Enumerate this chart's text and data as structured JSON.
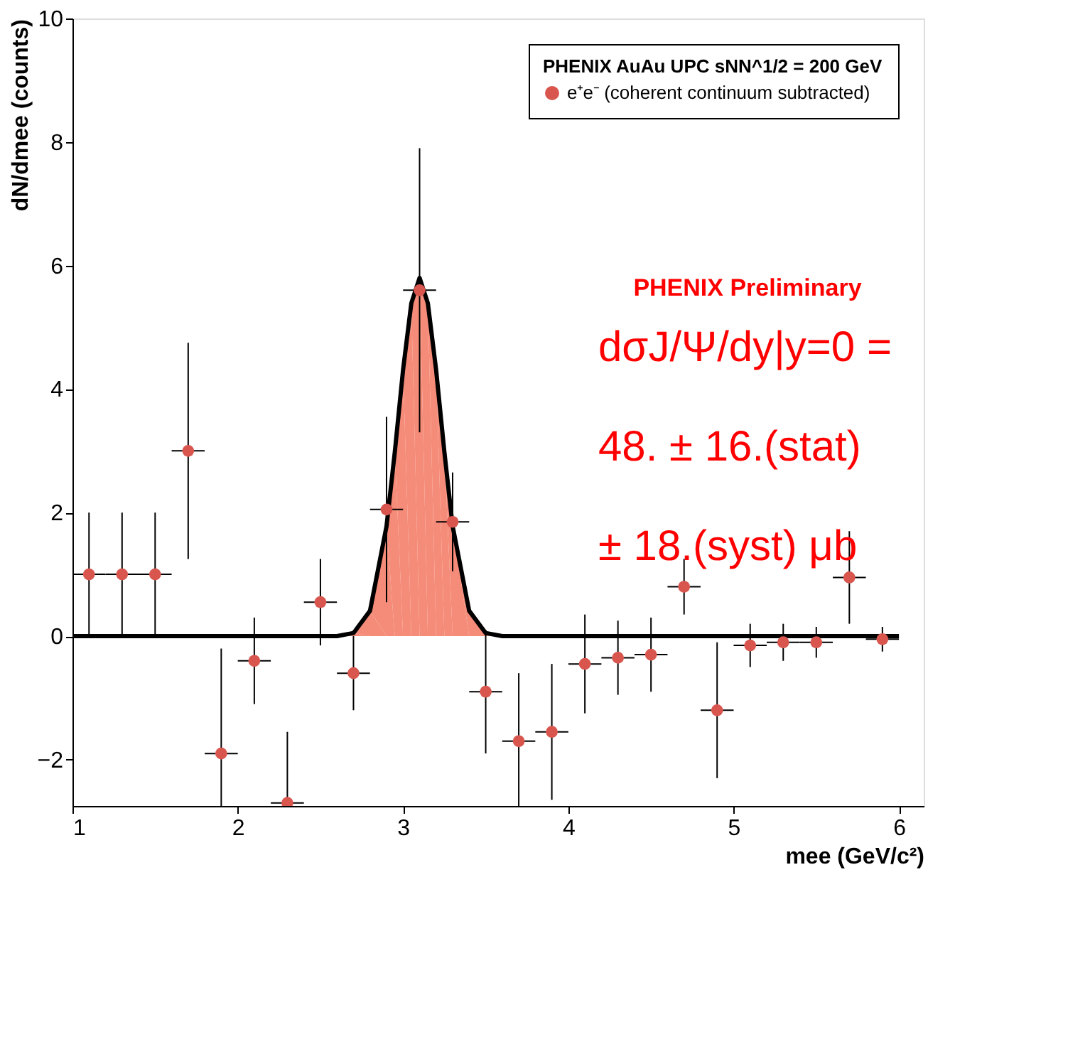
{
  "chart_data": {
    "type": "scatter",
    "xlabel": "mee (GeV/c²)",
    "ylabel": "dN/dmee (counts)",
    "legend_title": "PHENIX AuAu UPC sNN^1/2 = 200 GeV",
    "xlim": [
      1,
      6.15
    ],
    "ylim": [
      -2.75,
      10
    ],
    "xticks": [
      1,
      2,
      3,
      4,
      5,
      6
    ],
    "yticks": [
      -2,
      0,
      2,
      4,
      6,
      8,
      10
    ],
    "grid": false,
    "legend": "top right",
    "marker": "circle",
    "annotations": [
      "PHENIX Preliminary",
      "dσJ/Ψ/dy|y=0 =",
      "48. ± 16.(stat)",
      "± 18.(syst) μb"
    ],
    "series": [
      {
        "type": "area",
        "marker": "none",
        "color": "#f4806a",
        "x": [
          2.6,
          2.7,
          2.8,
          2.9,
          2.95,
          3.0,
          3.05,
          3.1,
          3.15,
          3.2,
          3.25,
          3.3,
          3.4,
          3.5,
          3.6
        ],
        "values": [
          0,
          0.05,
          0.41,
          1.78,
          2.98,
          4.31,
          5.39,
          5.8,
          5.39,
          4.31,
          2.98,
          1.78,
          0.41,
          0.05,
          0
        ]
      },
      {
        "type": "line",
        "marker": "none",
        "color": "#000000",
        "x": [
          1,
          2.6,
          2.7,
          2.8,
          2.9,
          2.95,
          3.0,
          3.05,
          3.1,
          3.15,
          3.2,
          3.25,
          3.3,
          3.4,
          3.5,
          3.6,
          6
        ],
        "values": [
          0,
          0,
          0.05,
          0.41,
          1.78,
          2.98,
          4.31,
          5.39,
          5.8,
          5.39,
          4.31,
          2.98,
          1.78,
          0.41,
          0.05,
          0,
          0
        ]
      },
      {
        "name": "e⁺e⁻ (coherent continuum subtracted)",
        "color": "#d9564f",
        "x": [
          1.1,
          1.3,
          1.5,
          1.7,
          1.9,
          2.1,
          2.3,
          2.5,
          2.7,
          2.9,
          3.1,
          3.3,
          3.5,
          3.7,
          3.9,
          4.1,
          4.3,
          4.5,
          4.7,
          4.9,
          5.1,
          5.3,
          5.5,
          5.7,
          5.9
        ],
        "values": [
          1.0,
          1.0,
          1.0,
          3.0,
          -1.9,
          -0.4,
          -2.7,
          0.55,
          -0.6,
          2.05,
          5.6,
          1.85,
          -0.9,
          -1.7,
          -1.55,
          -0.45,
          -0.35,
          -0.3,
          0.8,
          -1.2,
          -0.15,
          -0.1,
          -0.1,
          0.95,
          -0.05
        ],
        "errors": [
          1.0,
          1.0,
          1.0,
          1.75,
          1.7,
          0.7,
          1.15,
          0.7,
          0.6,
          1.5,
          2.3,
          0.8,
          1.0,
          1.1,
          1.1,
          0.8,
          0.6,
          0.6,
          0.45,
          1.1,
          0.35,
          0.3,
          0.25,
          0.75,
          0.2
        ],
        "xerrors": [
          0.1,
          0.1,
          0.1,
          0.1,
          0.1,
          0.1,
          0.1,
          0.1,
          0.1,
          0.1,
          0.1,
          0.1,
          0.1,
          0.1,
          0.1,
          0.1,
          0.1,
          0.1,
          0.1,
          0.1,
          0.1,
          0.1,
          0.1,
          0.1,
          0.1
        ]
      }
    ]
  }
}
